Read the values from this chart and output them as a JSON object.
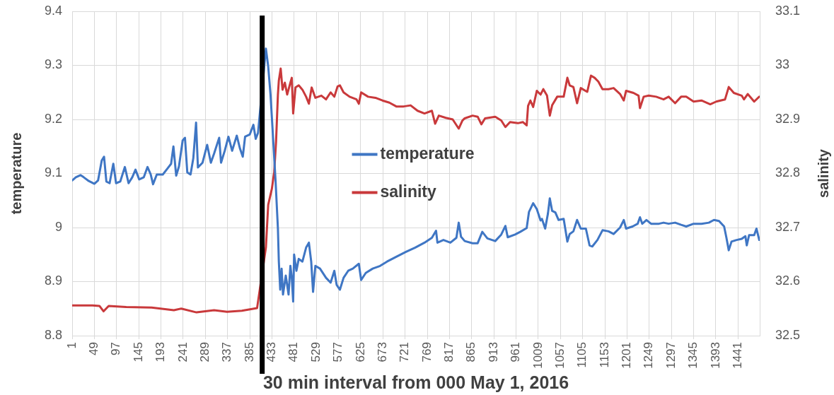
{
  "chart_data": {
    "type": "line",
    "xlabel": "30 min interval from 000 May 1, 2016",
    "ylabel": "temperature",
    "y2label": "salinity",
    "xlim": [
      1,
      1488
    ],
    "xticks": [
      1,
      49,
      97,
      145,
      193,
      241,
      289,
      337,
      385,
      433,
      481,
      529,
      577,
      625,
      673,
      721,
      769,
      817,
      865,
      913,
      961,
      1009,
      1057,
      1105,
      1153,
      1201,
      1249,
      1297,
      1345,
      1393,
      1441
    ],
    "ylim": [
      8.8,
      9.4
    ],
    "yticks": [
      8.8,
      8.9,
      9,
      9.1,
      9.2,
      9.3,
      9.4
    ],
    "y2lim": [
      32.5,
      33.1
    ],
    "y2ticks": [
      32.5,
      32.6,
      32.7,
      32.8,
      32.9,
      33,
      33.1
    ],
    "grid": true,
    "legend": "center",
    "marker": "none",
    "line_style": "solid",
    "ref_lines": [
      {
        "axis": "x",
        "value": 412,
        "color": "#000000"
      }
    ],
    "series": [
      {
        "name": "temperature",
        "color": "#3f76c4",
        "x": [
          1,
          9,
          19,
          26,
          37,
          49,
          57,
          65,
          70,
          75,
          82,
          90,
          96,
          105,
          115,
          123,
          131,
          138,
          146,
          156,
          164,
          171,
          176,
          184,
          197,
          207,
          215,
          220,
          226,
          232,
          240,
          245,
          250,
          257,
          263,
          269,
          273,
          283,
          293,
          301,
          308,
          319,
          323,
          331,
          339,
          347,
          357,
          364,
          370,
          375,
          385,
          393,
          398,
          403,
          420,
          425,
          430,
          436,
          441,
          446,
          448,
          451,
          454,
          457,
          463,
          469,
          473,
          476,
          479,
          481,
          486,
          491,
          499,
          507,
          513,
          518,
          522,
          527,
          537,
          550,
          560,
          568,
          573,
          580,
          588,
          598,
          608,
          621,
          626,
          636,
          651,
          667,
          682,
          702,
          723,
          743,
          763,
          779,
          788,
          791,
          804,
          819,
          832,
          837,
          842,
          850,
          867,
          878,
          888,
          899,
          916,
          929,
          938,
          943,
          959,
          970,
          984,
          989,
          998,
          1006,
          1014,
          1017,
          1024,
          1030,
          1034,
          1039,
          1046,
          1053,
          1064,
          1072,
          1077,
          1085,
          1093,
          1101,
          1112,
          1120,
          1126,
          1137,
          1148,
          1161,
          1172,
          1186,
          1194,
          1199,
          1213,
          1224,
          1229,
          1234,
          1243,
          1253,
          1270,
          1280,
          1291,
          1305,
          1318,
          1329,
          1345,
          1362,
          1378,
          1389,
          1400,
          1411,
          1416,
          1421,
          1427,
          1438,
          1449,
          1457,
          1460,
          1465,
          1476,
          1481,
          1487
        ],
        "values": [
          9.087,
          9.093,
          9.097,
          9.093,
          9.086,
          9.081,
          9.087,
          9.124,
          9.131,
          9.085,
          9.082,
          9.118,
          9.082,
          9.085,
          9.112,
          9.082,
          9.093,
          9.107,
          9.089,
          9.093,
          9.112,
          9.098,
          9.08,
          9.098,
          9.098,
          9.109,
          9.118,
          9.15,
          9.096,
          9.113,
          9.161,
          9.166,
          9.102,
          9.098,
          9.128,
          9.194,
          9.111,
          9.12,
          9.153,
          9.12,
          9.137,
          9.166,
          9.12,
          9.142,
          9.168,
          9.142,
          9.17,
          9.146,
          9.131,
          9.168,
          9.172,
          9.19,
          9.164,
          9.175,
          9.331,
          9.298,
          9.246,
          9.159,
          9.085,
          8.998,
          8.937,
          8.885,
          8.924,
          8.876,
          8.911,
          8.876,
          8.929,
          8.907,
          8.863,
          8.95,
          8.92,
          8.942,
          8.937,
          8.963,
          8.972,
          8.937,
          8.881,
          8.929,
          8.924,
          8.907,
          8.898,
          8.92,
          8.894,
          8.885,
          8.907,
          8.92,
          8.924,
          8.933,
          8.903,
          8.916,
          8.924,
          8.929,
          8.937,
          8.946,
          8.955,
          8.963,
          8.972,
          8.981,
          8.994,
          8.972,
          8.977,
          8.972,
          8.981,
          9.009,
          8.983,
          8.975,
          8.971,
          8.971,
          8.992,
          8.98,
          8.975,
          8.987,
          9.003,
          8.982,
          8.987,
          8.992,
          8.999,
          9.029,
          9.045,
          9.034,
          9.013,
          9.016,
          8.998,
          9.026,
          9.054,
          9.031,
          9.028,
          9.014,
          9.016,
          8.974,
          8.988,
          8.993,
          9.014,
          8.998,
          8.998,
          8.967,
          8.965,
          8.977,
          8.995,
          8.993,
          8.988,
          9.0,
          9.014,
          8.998,
          9.002,
          9.007,
          9.019,
          9.007,
          9.014,
          9.007,
          9.007,
          9.009,
          9.007,
          9.009,
          9.005,
          9.002,
          9.007,
          9.007,
          9.009,
          9.014,
          9.012,
          9.002,
          8.981,
          8.958,
          8.974,
          8.977,
          8.979,
          8.984,
          8.967,
          8.986,
          8.986,
          8.998,
          8.977
        ]
      },
      {
        "name": "salinity",
        "color": "#c9393b",
        "axis": "y2",
        "x": [
          1,
          20,
          45,
          60,
          69,
          80,
          118,
          173,
          221,
          237,
          270,
          308,
          336,
          368,
          401,
          420,
          425,
          433,
          438,
          442,
          446,
          448,
          452,
          456,
          461,
          466,
          473,
          476,
          479,
          484,
          491,
          499,
          507,
          513,
          519,
          527,
          540,
          550,
          560,
          568,
          575,
          580,
          588,
          601,
          616,
          621,
          626,
          641,
          657,
          672,
          687,
          702,
          718,
          733,
          748,
          763,
          779,
          786,
          794,
          809,
          824,
          837,
          845,
          850,
          867,
          878,
          886,
          894,
          916,
          929,
          938,
          948,
          965,
          976,
          984,
          987,
          992,
          998,
          1006,
          1014,
          1020,
          1028,
          1034,
          1039,
          1050,
          1064,
          1072,
          1077,
          1085,
          1093,
          1101,
          1115,
          1123,
          1131,
          1139,
          1148,
          1161,
          1172,
          1186,
          1194,
          1199,
          1215,
          1226,
          1229,
          1237,
          1248,
          1264,
          1280,
          1291,
          1305,
          1318,
          1329,
          1345,
          1362,
          1381,
          1394,
          1413,
          1421,
          1432,
          1449,
          1454,
          1462,
          1476,
          1487
        ],
        "values": [
          32.556,
          32.556,
          32.556,
          32.555,
          32.545,
          32.555,
          32.553,
          32.552,
          32.547,
          32.55,
          32.543,
          32.547,
          32.544,
          32.546,
          32.551,
          32.663,
          32.742,
          32.772,
          32.803,
          32.859,
          32.946,
          32.972,
          32.994,
          32.955,
          32.968,
          32.946,
          32.968,
          32.977,
          32.911,
          32.959,
          32.963,
          32.955,
          32.942,
          32.929,
          32.959,
          32.94,
          32.944,
          32.937,
          32.95,
          32.942,
          32.961,
          32.963,
          32.95,
          32.942,
          32.937,
          32.929,
          32.95,
          32.942,
          32.94,
          32.935,
          32.931,
          32.924,
          32.924,
          32.926,
          32.916,
          32.911,
          32.916,
          32.892,
          32.907,
          32.903,
          32.9,
          32.883,
          32.898,
          32.902,
          32.907,
          32.905,
          32.891,
          32.902,
          32.905,
          32.898,
          32.886,
          32.895,
          32.893,
          32.895,
          32.889,
          32.925,
          32.935,
          32.923,
          32.953,
          32.946,
          32.956,
          32.944,
          32.907,
          32.926,
          32.942,
          32.942,
          32.977,
          32.963,
          32.96,
          32.93,
          32.958,
          32.951,
          32.981,
          32.977,
          32.97,
          32.956,
          32.956,
          32.958,
          32.947,
          32.935,
          32.953,
          32.949,
          32.944,
          32.921,
          32.942,
          32.944,
          32.942,
          32.937,
          32.942,
          32.93,
          32.942,
          32.942,
          32.933,
          32.935,
          32.928,
          32.933,
          32.937,
          32.96,
          32.949,
          32.944,
          32.937,
          32.947,
          32.933,
          32.942
        ]
      }
    ]
  }
}
